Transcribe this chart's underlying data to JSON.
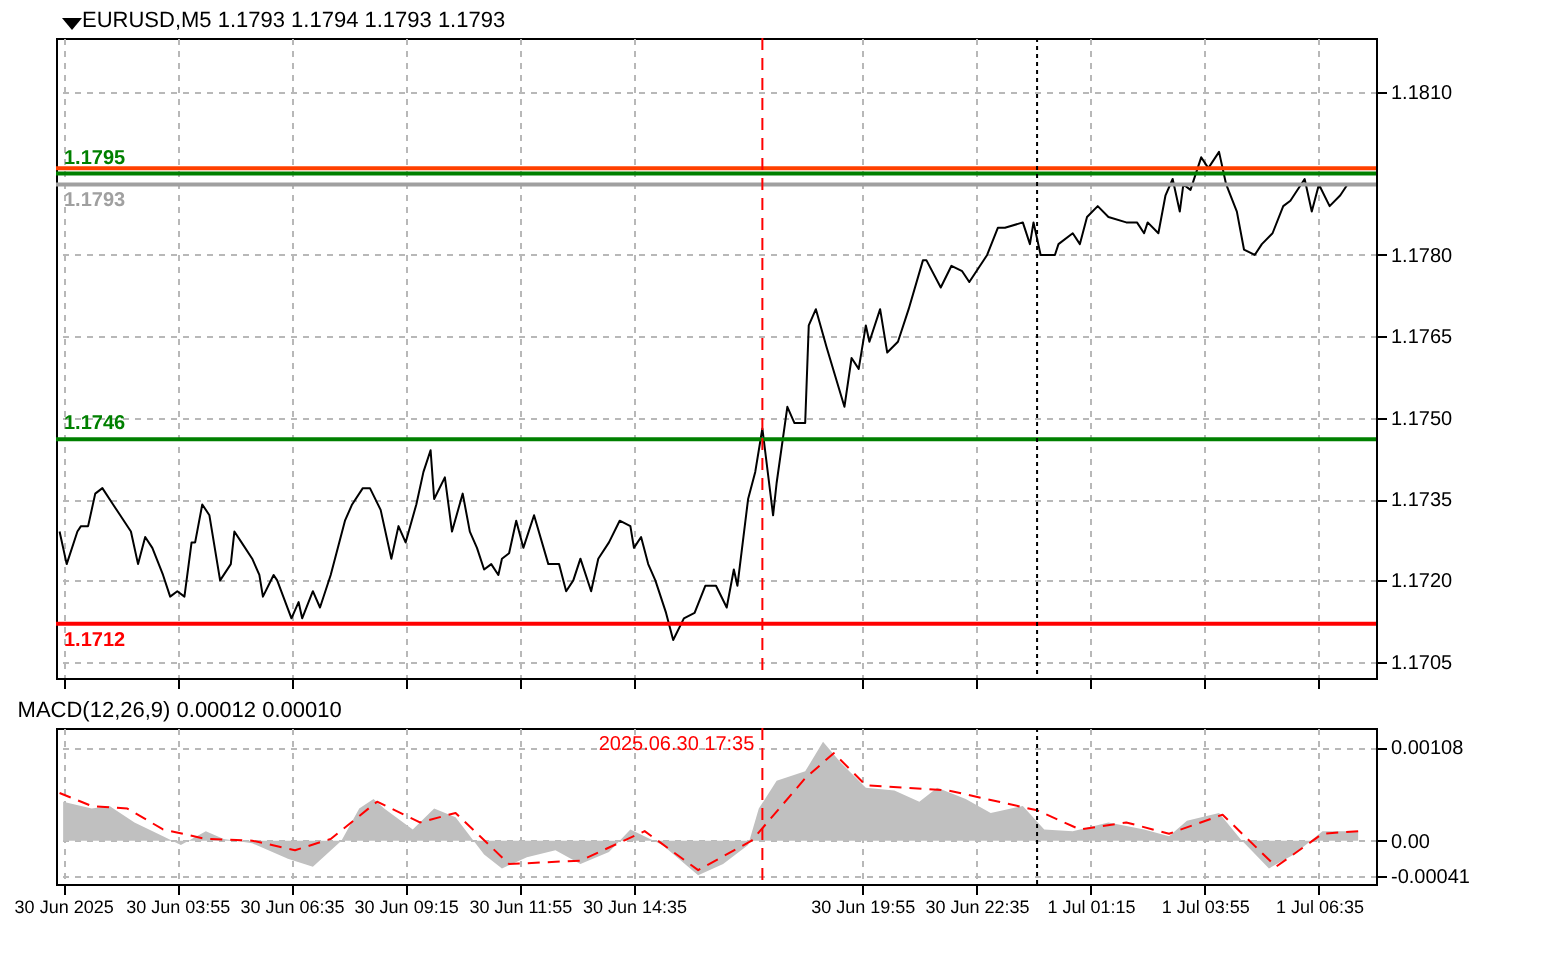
{
  "chart_data": [
    {
      "type": "line",
      "title": "EURUSD,M5 1.1793 1.1794 1.1793 1.1793",
      "x": [
        "2025-06-30T01:10",
        "2025-06-30T01:20",
        "2025-06-30T01:35",
        "2025-06-30T01:40",
        "2025-06-30T01:50",
        "2025-06-30T02:00",
        "2025-06-30T02:10",
        "2025-06-30T02:25",
        "2025-06-30T02:35",
        "2025-06-30T02:50",
        "2025-06-30T03:00",
        "2025-06-30T03:10",
        "2025-06-30T03:20",
        "2025-06-30T03:35",
        "2025-06-30T03:45",
        "2025-06-30T03:55",
        "2025-06-30T04:05",
        "2025-06-30T04:15",
        "2025-06-30T04:20",
        "2025-06-30T04:30",
        "2025-06-30T04:40",
        "2025-06-30T04:55",
        "2025-06-30T05:10",
        "2025-06-30T05:15",
        "2025-06-30T05:25",
        "2025-06-30T05:40",
        "2025-06-30T05:50",
        "2025-06-30T05:55",
        "2025-06-30T06:10",
        "2025-06-30T06:15",
        "2025-06-30T06:35",
        "2025-06-30T06:45",
        "2025-06-30T06:50",
        "2025-06-30T07:05",
        "2025-06-30T07:15",
        "2025-06-30T07:30",
        "2025-06-30T07:50",
        "2025-06-30T08:00",
        "2025-06-30T08:15",
        "2025-06-30T08:25",
        "2025-06-30T08:40",
        "2025-06-30T08:55",
        "2025-06-30T09:05",
        "2025-06-30T09:15",
        "2025-06-30T09:30",
        "2025-06-30T09:40",
        "2025-06-30T09:50",
        "2025-06-30T09:55",
        "2025-06-30T10:10",
        "2025-06-30T10:20",
        "2025-06-30T10:35",
        "2025-06-30T10:45",
        "2025-06-30T10:55",
        "2025-06-30T11:05",
        "2025-06-30T11:15",
        "2025-06-30T11:25",
        "2025-06-30T11:30",
        "2025-06-30T11:40",
        "2025-06-30T11:50",
        "2025-06-30T12:00",
        "2025-06-30T12:15",
        "2025-06-30T12:35",
        "2025-06-30T12:50",
        "2025-06-30T13:00",
        "2025-06-30T13:10",
        "2025-06-30T13:20",
        "2025-06-30T13:35",
        "2025-06-30T13:45",
        "2025-06-30T14:00",
        "2025-06-30T14:15",
        "2025-06-30T14:30",
        "2025-06-30T14:35",
        "2025-06-30T14:45",
        "2025-06-30T14:55",
        "2025-06-30T15:05",
        "2025-06-30T15:20",
        "2025-06-30T15:30",
        "2025-06-30T15:45",
        "2025-06-30T16:00",
        "2025-06-30T16:15",
        "2025-06-30T16:30",
        "2025-06-30T16:45",
        "2025-06-30T16:55",
        "2025-06-30T17:00",
        "2025-06-30T17:15",
        "2025-06-30T17:25",
        "2025-06-30T17:35",
        "2025-06-30T17:50",
        "2025-06-30T17:55",
        "2025-06-30T18:10",
        "2025-06-30T18:20",
        "2025-06-30T18:35",
        "2025-06-30T18:40",
        "2025-06-30T18:50",
        "2025-06-30T19:05",
        "2025-06-30T19:30",
        "2025-06-30T19:40",
        "2025-06-30T19:50",
        "2025-06-30T20:00",
        "2025-06-30T20:05",
        "2025-06-30T20:20",
        "2025-06-30T20:30",
        "2025-06-30T20:45",
        "2025-06-30T21:00",
        "2025-06-30T21:20",
        "2025-06-30T21:25",
        "2025-06-30T21:45",
        "2025-06-30T22:00",
        "2025-06-30T22:15",
        "2025-06-30T22:25",
        "2025-06-30T22:50",
        "2025-06-30T23:05",
        "2025-06-30T23:15",
        "2025-06-30T23:40",
        "2025-06-30T23:50",
        "2025-06-30T23:55",
        "2025-07-01T00:05",
        "2025-07-01T00:25",
        "2025-07-01T00:30",
        "2025-07-01T00:50",
        "2025-07-01T01:00",
        "2025-07-01T01:10",
        "2025-07-01T01:25",
        "2025-07-01T01:40",
        "2025-07-01T02:05",
        "2025-07-01T02:20",
        "2025-07-01T02:30",
        "2025-07-01T02:35",
        "2025-07-01T02:50",
        "2025-07-01T03:00",
        "2025-07-01T03:10",
        "2025-07-01T03:20",
        "2025-07-01T03:25",
        "2025-07-01T03:35",
        "2025-07-01T03:50",
        "2025-07-01T04:00",
        "2025-07-01T04:15",
        "2025-07-01T04:25",
        "2025-07-01T04:40",
        "2025-07-01T04:50",
        "2025-07-01T05:05",
        "2025-07-01T05:15",
        "2025-07-01T05:30",
        "2025-07-01T05:45",
        "2025-07-01T05:55",
        "2025-07-01T06:15",
        "2025-07-01T06:25",
        "2025-07-01T06:35",
        "2025-07-01T06:50",
        "2025-07-01T07:05",
        "2025-07-01T07:15"
      ],
      "series": [
        {
          "color": "#000000",
          "values": [
            1.1729,
            1.1723,
            1.1729,
            1.173,
            1.173,
            1.1736,
            1.1737,
            1.1734,
            1.1732,
            1.1729,
            1.1723,
            1.1728,
            1.1726,
            1.1721,
            1.1717,
            1.1718,
            1.1717,
            1.1727,
            1.1727,
            1.1734,
            1.1732,
            1.172,
            1.1723,
            1.1729,
            1.1727,
            1.1724,
            1.1721,
            1.1717,
            1.1721,
            1.172,
            1.1713,
            1.1716,
            1.1713,
            1.1718,
            1.1715,
            1.1721,
            1.1731,
            1.1734,
            1.1737,
            1.1737,
            1.1733,
            1.1724,
            1.173,
            1.1727,
            1.1734,
            1.174,
            1.1744,
            1.1735,
            1.1739,
            1.1729,
            1.1736,
            1.1729,
            1.1726,
            1.1722,
            1.1723,
            1.1721,
            1.1724,
            1.1725,
            1.1731,
            1.1726,
            1.1732,
            1.1723,
            1.1723,
            1.1718,
            1.172,
            1.1724,
            1.1718,
            1.1724,
            1.1727,
            1.1731,
            1.173,
            1.1726,
            1.1728,
            1.1723,
            1.172,
            1.1714,
            1.1709,
            1.1713,
            1.1714,
            1.1719,
            1.1719,
            1.1715,
            1.1722,
            1.1719,
            1.1735,
            1.174,
            1.1748,
            1.1732,
            1.1738,
            1.1752,
            1.1749,
            1.1749,
            1.1767,
            1.177,
            1.1763,
            1.1752,
            1.1761,
            1.1759,
            1.1767,
            1.1764,
            1.177,
            1.1762,
            1.1764,
            1.177,
            1.1779,
            1.1779,
            1.1774,
            1.1778,
            1.1777,
            1.1775,
            1.178,
            1.1785,
            1.1785,
            1.1786,
            1.1782,
            1.1786,
            1.178,
            1.178,
            1.1782,
            1.1784,
            1.1782,
            1.1787,
            1.1789,
            1.1787,
            1.1786,
            1.1786,
            1.1784,
            1.1786,
            1.1784,
            1.1791,
            1.1794,
            1.1788,
            1.1793,
            1.1792,
            1.1798,
            1.1796,
            1.1799,
            1.1793,
            1.1788,
            1.1781,
            1.178,
            1.1782,
            1.1784,
            1.1789,
            1.179,
            1.1794,
            1.1788,
            1.1793,
            1.1789,
            1.1791,
            1.1793
          ]
        }
      ],
      "xlim": [
        "2025-06-30T01:05",
        "2025-07-01T07:55"
      ],
      "xticks": [
        {
          "value": "2025-06-30T01:15",
          "label": null
        },
        {
          "value": "2025-06-30T03:55",
          "label": null
        },
        {
          "value": "2025-06-30T06:35",
          "label": null
        },
        {
          "value": "2025-06-30T09:15",
          "label": null
        },
        {
          "value": "2025-06-30T11:55",
          "label": null
        },
        {
          "value": "2025-06-30T14:35",
          "label": null
        },
        {
          "value": "2025-06-30T19:55",
          "label": null
        },
        {
          "value": "2025-06-30T22:35",
          "label": null
        },
        {
          "value": "2025-07-01T01:15",
          "label": null
        },
        {
          "value": "2025-07-01T03:55",
          "label": null
        },
        {
          "value": "2025-07-01T06:35",
          "label": null
        }
      ],
      "ylim": [
        1.1702,
        1.182
      ],
      "yticks": [
        {
          "value": 1.1705,
          "label": "1.1705"
        },
        {
          "value": 1.172,
          "label": "1.1720"
        },
        {
          "value": 1.1735,
          "label": "1.1735"
        },
        {
          "value": 1.175,
          "label": "1.1750"
        },
        {
          "value": 1.1765,
          "label": "1.1765"
        },
        {
          "value": 1.178,
          "label": "1.1780"
        },
        {
          "value": 1.181,
          "label": "1.1810"
        }
      ],
      "grid": true,
      "tick_labels": "y",
      "ref_lines": [
        {
          "axis": "y",
          "value": 1.1795,
          "label": "1.1795",
          "color": "#008000"
        },
        {
          "axis": "y",
          "value": 1.1793,
          "label": "1.1793",
          "color": "#a0a0a0"
        },
        {
          "axis": "y",
          "value": 1.1796,
          "label": null,
          "color": "#ff4000"
        },
        {
          "axis": "y",
          "value": 1.1746,
          "label": "1.1746",
          "color": "#008000"
        },
        {
          "axis": "y",
          "value": 1.1712,
          "label": "1.1712",
          "color": "#ff0000"
        },
        {
          "axis": "x",
          "value": "2025-06-30T17:35",
          "label": null,
          "color": "#ff0000",
          "line_style": "dashed"
        },
        {
          "axis": "x",
          "value": "2025-07-01T00:00",
          "label": null,
          "color": "#000000",
          "line_style": "dotted"
        }
      ]
    },
    {
      "type": "area",
      "title": "MACD(12,26,9) 0.00012 0.00010",
      "series": [
        {
          "color": "#c0c0c0",
          "x": [
            "2025-06-30T01:15",
            "2025-06-30T01:55",
            "2025-06-30T02:20",
            "2025-06-30T02:55",
            "2025-06-30T03:35",
            "2025-06-30T04:00",
            "2025-06-30T04:35",
            "2025-06-30T05:00",
            "2025-06-30T05:40",
            "2025-06-30T06:30",
            "2025-06-30T07:05",
            "2025-06-30T07:45",
            "2025-06-30T08:10",
            "2025-06-30T08:30",
            "2025-06-30T08:45",
            "2025-06-30T09:25",
            "2025-06-30T09:55",
            "2025-06-30T10:25",
            "2025-06-30T11:05",
            "2025-06-30T11:30",
            "2025-06-30T12:05",
            "2025-06-30T12:45",
            "2025-06-30T13:20",
            "2025-06-30T14:00",
            "2025-06-30T14:30",
            "2025-06-30T15:15",
            "2025-06-30T16:05",
            "2025-06-30T16:40",
            "2025-06-30T17:15",
            "2025-06-30T17:30",
            "2025-06-30T17:55",
            "2025-06-30T18:35",
            "2025-06-30T19:00",
            "2025-06-30T19:25",
            "2025-06-30T20:00",
            "2025-06-30T20:40",
            "2025-06-30T21:15",
            "2025-06-30T21:40",
            "2025-06-30T22:20",
            "2025-06-30T22:55",
            "2025-06-30T23:40",
            "2025-07-01T00:10",
            "2025-07-01T00:50",
            "2025-07-01T01:40",
            "2025-07-01T02:30",
            "2025-07-01T03:05",
            "2025-07-01T03:30",
            "2025-07-01T04:15",
            "2025-07-01T04:45",
            "2025-07-01T05:25",
            "2025-07-01T06:00",
            "2025-07-01T06:40",
            "2025-07-01T07:30"
          ],
          "values": [
            0.00045,
            0.00037,
            0.0004,
            0.00021,
            5e-05,
            -5e-05,
            0.00011,
            2e-05,
            -3e-05,
            -0.00021,
            -0.0003,
            0,
            0.00037,
            0.00048,
            0.00037,
            0.00013,
            0.00037,
            0.00027,
            -0.00016,
            -0.00032,
            -0.00019,
            -0.00011,
            -0.00027,
            -0.00013,
            0.00013,
            -5e-05,
            -0.0004,
            -0.00027,
            -5e-05,
            0.00037,
            0.00069,
            0.0008,
            0.00114,
            0.0009,
            0.00061,
            0.00058,
            0.00045,
            0.00061,
            0.00048,
            0.00032,
            0.0004,
            0.00013,
            0.00011,
            0.00021,
            0.00013,
            5e-05,
            0.00023,
            0.00032,
            2e-05,
            -0.00032,
            -0.00016,
            0.00011,
            0.00011
          ]
        },
        {
          "type": "line",
          "color": "#ff0000",
          "line_style": "dashed",
          "x": [
            "2025-06-30T01:10",
            "2025-06-30T01:55",
            "2025-06-30T02:45",
            "2025-06-30T03:35",
            "2025-06-30T04:35",
            "2025-06-30T05:40",
            "2025-06-30T06:40",
            "2025-06-30T07:30",
            "2025-06-30T08:35",
            "2025-06-30T09:35",
            "2025-06-30T10:25",
            "2025-06-30T11:40",
            "2025-06-30T13:20",
            "2025-06-30T14:50",
            "2025-06-30T16:05",
            "2025-06-30T17:20",
            "2025-06-30T18:35",
            "2025-06-30T19:15",
            "2025-06-30T20:00",
            "2025-06-30T21:55",
            "2025-07-01T00:00",
            "2025-07-01T01:00",
            "2025-07-01T02:05",
            "2025-07-01T03:05",
            "2025-07-01T04:20",
            "2025-07-01T05:35",
            "2025-07-01T06:40",
            "2025-07-01T07:30"
          ],
          "values": [
            0.00055,
            0.0004,
            0.00037,
            0.00013,
            2e-05,
            0,
            -0.00011,
            2e-05,
            0.00045,
            0.00021,
            0.00032,
            -0.00027,
            -0.00023,
            0.00011,
            -0.00034,
            0,
            0.00072,
            0.00101,
            0.00064,
            0.00058,
            0.00035,
            0.00013,
            0.00021,
            8e-05,
            0.0003,
            -0.0003,
            8e-05,
            0.00011
          ]
        }
      ],
      "xlim": [
        "2025-06-30T01:05",
        "2025-07-01T07:55"
      ],
      "xticks": [
        {
          "value": "2025-06-30T01:15",
          "label": "30 Jun 2025"
        },
        {
          "value": "2025-06-30T03:55",
          "label": "30 Jun 03:55"
        },
        {
          "value": "2025-06-30T06:35",
          "label": "30 Jun 06:35"
        },
        {
          "value": "2025-06-30T09:15",
          "label": "30 Jun 09:15"
        },
        {
          "value": "2025-06-30T11:55",
          "label": "30 Jun 11:55"
        },
        {
          "value": "2025-06-30T14:35",
          "label": "30 Jun 14:35"
        },
        {
          "value": "2025-06-30T19:55",
          "label": "30 Jun 19:55"
        },
        {
          "value": "2025-06-30T22:35",
          "label": "30 Jun 22:35"
        },
        {
          "value": "2025-07-01T01:15",
          "label": "1 Jul 01:15"
        },
        {
          "value": "2025-07-01T03:55",
          "label": "1 Jul 03:55"
        },
        {
          "value": "2025-07-01T06:35",
          "label": "1 Jul 06:35"
        }
      ],
      "ylim": [
        -0.0005,
        0.0013
      ],
      "yticks": [
        0.00108,
        {
          "value": 0,
          "label": "0.00"
        },
        -0.00041
      ],
      "grid": true,
      "ref_lines": [
        {
          "axis": "x",
          "value": "2025-06-30T17:35",
          "label": "2025.06.30 17:35",
          "color": "#ff0000",
          "line_style": "dashed"
        },
        {
          "axis": "x",
          "value": "2025-07-01T00:00",
          "label": null,
          "color": "#000000",
          "line_style": "dotted"
        }
      ]
    }
  ]
}
